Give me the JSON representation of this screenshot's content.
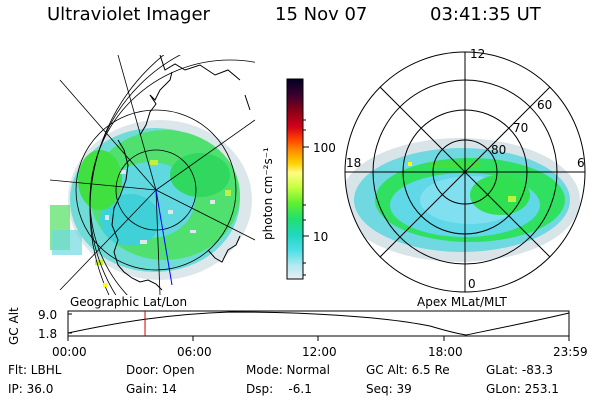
{
  "header": {
    "instrument": "Ultraviolet Imager",
    "date": "15 Nov 07",
    "time": "03:41:35 UT"
  },
  "colorbar": {
    "unit_label": "photon cm⁻²s⁻¹",
    "ticks": [
      "100",
      "10"
    ],
    "colors": [
      "#000020",
      "#3a0030",
      "#6a0020",
      "#a00010",
      "#d4001a",
      "#ff3000",
      "#ff7800",
      "#ffb000",
      "#ffe000",
      "#fffc60",
      "#d8ff40",
      "#90ff30",
      "#30e830",
      "#20d8a0",
      "#40e0e0",
      "#a0e8f0",
      "#e0e8f0"
    ]
  },
  "maps": {
    "left_label": "Geographic Lat/Lon",
    "right_label": "Apex  MLat/MLT",
    "polar_labels": {
      "mlt_12": "12",
      "mlt_18": "18",
      "mlt_6": "6",
      "mlt_0": "0",
      "lat_60": "60",
      "lat_70": "70",
      "lat_80": "80"
    }
  },
  "altitude_plot": {
    "ylabel": "GC Alt",
    "y_ticks": [
      "9.0",
      "1.8"
    ],
    "x_ticks": [
      "00:00",
      "06:00",
      "12:00",
      "18:00",
      "23:59"
    ],
    "current_time_hours": 3.69
  },
  "status": {
    "flt": "Flt: LBHL",
    "ip": "IP: 36.0",
    "door": "Door: Open",
    "gain": "Gain: 14",
    "mode": "Mode: Normal",
    "dsp": "Dsp:    -6.1",
    "gc_alt": "GC Alt: 6.5 Re",
    "seq": "Seq: 39",
    "glat": "GLat: -83.3",
    "glon": "GLon: 253.1"
  }
}
